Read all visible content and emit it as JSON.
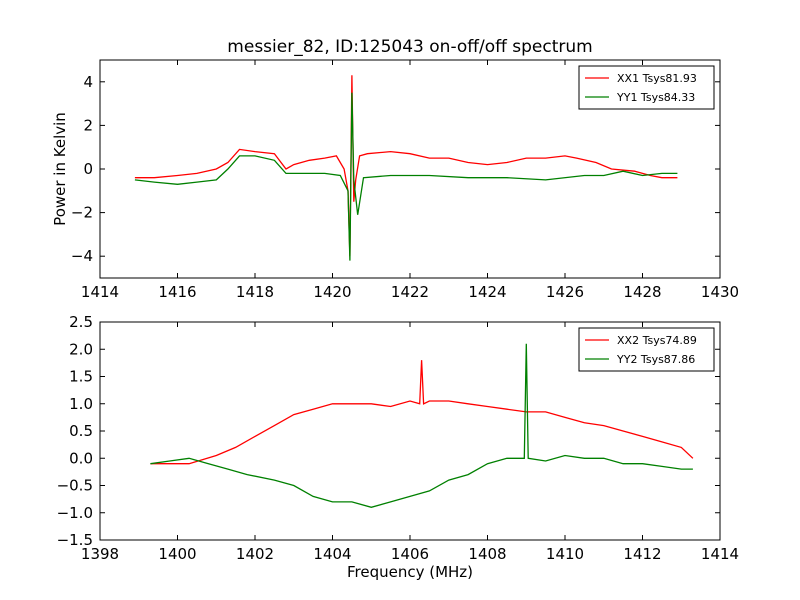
{
  "chart_data": [
    {
      "type": "line",
      "title": "messier_82, ID:125043 on-off/off spectrum",
      "xlabel": "",
      "ylabel": "Power in Kelvin",
      "xlim": [
        1414,
        1430
      ],
      "ylim": [
        -5,
        5
      ],
      "xticks": [
        1414,
        1416,
        1418,
        1420,
        1422,
        1424,
        1426,
        1428,
        1430
      ],
      "yticks": [
        -4,
        -2,
        0,
        2,
        4
      ],
      "legend_position": "top-right",
      "grid": false,
      "series": [
        {
          "name": "XX1 Tsys81.93",
          "color": "#ff0000",
          "x": [
            1414.9,
            1415.4,
            1416.0,
            1416.5,
            1417.0,
            1417.3,
            1417.6,
            1418.0,
            1418.5,
            1418.8,
            1419.0,
            1419.4,
            1419.8,
            1420.1,
            1420.3,
            1420.4,
            1420.45,
            1420.5,
            1420.55,
            1420.6,
            1420.7,
            1420.9,
            1421.5,
            1422.0,
            1422.5,
            1423.0,
            1423.5,
            1424.0,
            1424.5,
            1425.0,
            1425.5,
            1426.0,
            1426.3,
            1426.8,
            1427.2,
            1427.8,
            1428.2,
            1428.5,
            1428.9
          ],
          "values": [
            -0.4,
            -0.4,
            -0.3,
            -0.2,
            0.0,
            0.3,
            0.9,
            0.8,
            0.7,
            0.0,
            0.2,
            0.4,
            0.5,
            0.6,
            0.0,
            -1.0,
            -4.0,
            4.3,
            -1.5,
            -0.5,
            0.6,
            0.7,
            0.8,
            0.7,
            0.5,
            0.5,
            0.3,
            0.2,
            0.3,
            0.5,
            0.5,
            0.6,
            0.5,
            0.3,
            0.0,
            -0.1,
            -0.3,
            -0.4,
            -0.4
          ]
        },
        {
          "name": "YY1 Tsys84.33",
          "color": "#008000",
          "x": [
            1414.9,
            1415.4,
            1416.0,
            1416.5,
            1417.0,
            1417.3,
            1417.6,
            1418.0,
            1418.5,
            1418.8,
            1419.2,
            1419.8,
            1420.2,
            1420.4,
            1420.45,
            1420.5,
            1420.55,
            1420.65,
            1420.8,
            1421.5,
            1422.5,
            1423.5,
            1424.5,
            1425.5,
            1426.5,
            1427.0,
            1427.5,
            1428.0,
            1428.5,
            1428.9
          ],
          "values": [
            -0.5,
            -0.6,
            -0.7,
            -0.6,
            -0.5,
            0.0,
            0.6,
            0.6,
            0.4,
            -0.2,
            -0.2,
            -0.2,
            -0.3,
            -1.0,
            -4.2,
            3.5,
            -0.5,
            -2.1,
            -0.4,
            -0.3,
            -0.3,
            -0.4,
            -0.4,
            -0.5,
            -0.3,
            -0.3,
            -0.1,
            -0.3,
            -0.2,
            -0.2
          ]
        }
      ]
    },
    {
      "type": "line",
      "title": "",
      "xlabel": "Frequency (MHz)",
      "ylabel": "",
      "xlim": [
        1398,
        1414
      ],
      "ylim": [
        -1.5,
        2.5
      ],
      "xticks": [
        1398,
        1400,
        1402,
        1404,
        1406,
        1408,
        1410,
        1412,
        1414
      ],
      "yticks": [
        -1.5,
        -1.0,
        -0.5,
        0.0,
        0.5,
        1.0,
        1.5,
        2.0,
        2.5
      ],
      "legend_position": "top-right",
      "grid": false,
      "series": [
        {
          "name": "XX2 Tsys74.89",
          "color": "#ff0000",
          "x": [
            1399.3,
            1399.8,
            1400.3,
            1401.0,
            1401.5,
            1402.0,
            1402.5,
            1403.0,
            1403.5,
            1404.0,
            1404.5,
            1405.0,
            1405.5,
            1406.0,
            1406.25,
            1406.3,
            1406.35,
            1406.5,
            1407.0,
            1407.5,
            1408.0,
            1408.5,
            1409.0,
            1409.5,
            1410.0,
            1410.5,
            1411.0,
            1411.5,
            1412.0,
            1412.5,
            1413.0,
            1413.3
          ],
          "values": [
            -0.1,
            -0.1,
            -0.1,
            0.05,
            0.2,
            0.4,
            0.6,
            0.8,
            0.9,
            1.0,
            1.0,
            1.0,
            0.95,
            1.05,
            1.0,
            1.8,
            1.0,
            1.05,
            1.05,
            1.0,
            0.95,
            0.9,
            0.85,
            0.85,
            0.75,
            0.65,
            0.6,
            0.5,
            0.4,
            0.3,
            0.2,
            0.0
          ]
        },
        {
          "name": "YY2 Tsys87.86",
          "color": "#008000",
          "x": [
            1399.3,
            1399.8,
            1400.3,
            1400.8,
            1401.3,
            1401.8,
            1402.5,
            1403.0,
            1403.5,
            1404.0,
            1404.5,
            1405.0,
            1405.5,
            1406.0,
            1406.5,
            1407.0,
            1407.5,
            1408.0,
            1408.5,
            1408.95,
            1409.0,
            1409.05,
            1409.5,
            1410.0,
            1410.5,
            1411.0,
            1411.5,
            1412.0,
            1412.5,
            1413.0,
            1413.3
          ],
          "values": [
            -0.1,
            -0.05,
            0.0,
            -0.1,
            -0.2,
            -0.3,
            -0.4,
            -0.5,
            -0.7,
            -0.8,
            -0.8,
            -0.9,
            -0.8,
            -0.7,
            -0.6,
            -0.4,
            -0.3,
            -0.1,
            0.0,
            0.0,
            2.1,
            0.0,
            -0.05,
            0.05,
            0.0,
            0.0,
            -0.1,
            -0.1,
            -0.15,
            -0.2,
            -0.2
          ]
        }
      ]
    }
  ]
}
